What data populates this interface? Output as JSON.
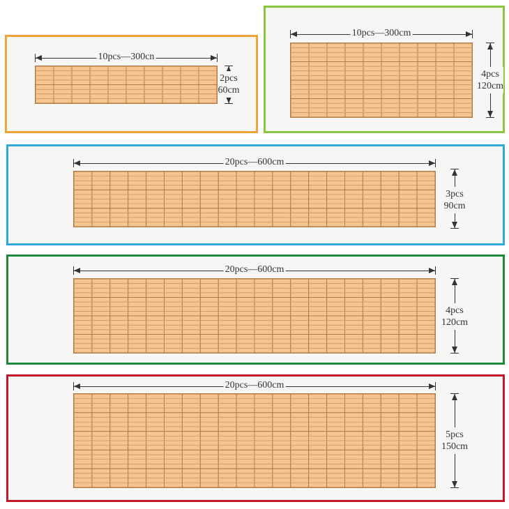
{
  "panels": [
    {
      "border_color": "#f0a33a",
      "cols": 10,
      "rows": 2,
      "width_label": "10pcs—300cn",
      "height_count": "2pcs",
      "height_size": "60cm"
    },
    {
      "border_color": "#8cc63f",
      "cols": 10,
      "rows": 4,
      "width_label": "10pcs—300cm",
      "height_count": "4pcs",
      "height_size": "120cm"
    },
    {
      "border_color": "#2ea9d9",
      "cols": 20,
      "rows": 3,
      "width_label": "20pcs—600cm",
      "height_count": "3pcs",
      "height_size": "90cm"
    },
    {
      "border_color": "#1f8a3a",
      "cols": 20,
      "rows": 4,
      "width_label": "20pcs—600cm",
      "height_count": "4pcs",
      "height_size": "120cm"
    },
    {
      "border_color": "#c4172c",
      "cols": 20,
      "rows": 5,
      "width_label": "20pcs—600cm",
      "height_count": "5pcs",
      "height_size": "150cm"
    }
  ],
  "colors": {
    "panel_fill": "#f4c591",
    "panel_line": "#b37a44",
    "background": "#f6f6f4"
  }
}
